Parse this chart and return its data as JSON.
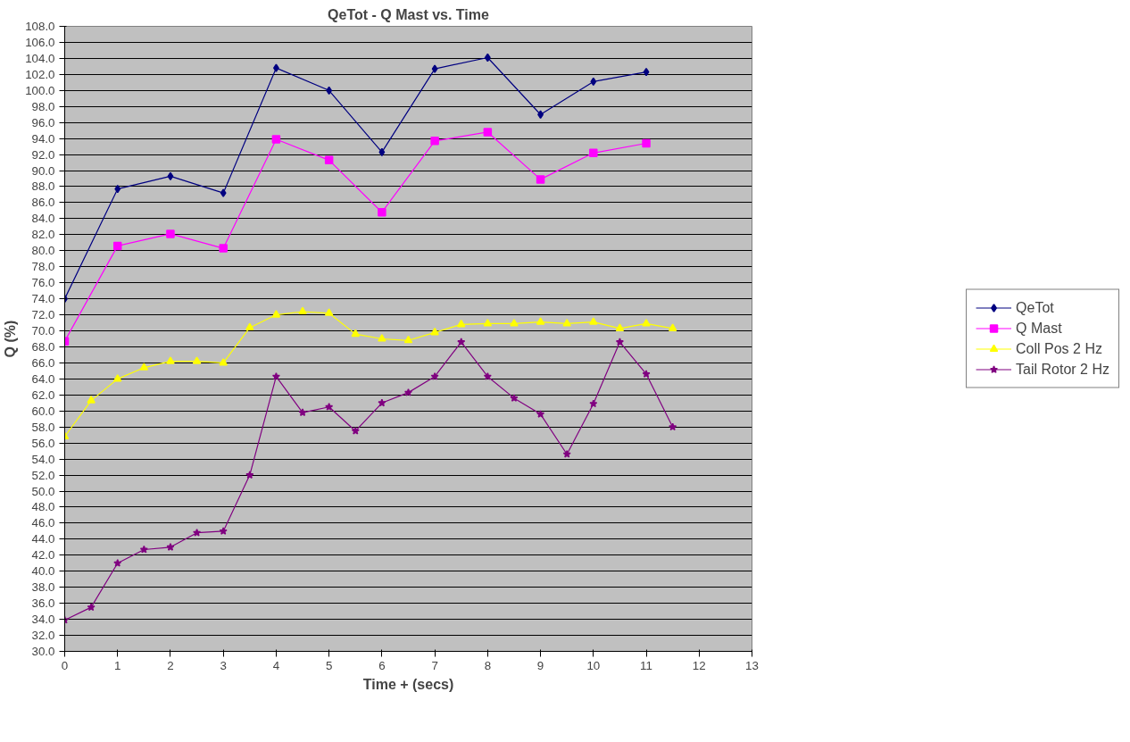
{
  "chart_data": {
    "type": "line",
    "title": "QeTot - Q Mast vs. Time",
    "xlabel": "Time + (secs)",
    "ylabel": "Q (%)",
    "xlim": [
      0,
      13
    ],
    "xticks": [
      0,
      1,
      2,
      3,
      4,
      5,
      6,
      7,
      8,
      9,
      10,
      11,
      12,
      13
    ],
    "ylim": [
      30,
      108
    ],
    "yticks": [
      {
        "value": 30,
        "label": "30.0"
      },
      {
        "value": 32,
        "label": "32.0"
      },
      {
        "value": 34,
        "label": "34.0"
      },
      {
        "value": 36,
        "label": "36.0"
      },
      {
        "value": 38,
        "label": "38.0"
      },
      {
        "value": 40,
        "label": "40.0"
      },
      {
        "value": 42,
        "label": "42.0"
      },
      {
        "value": 44,
        "label": "44.0"
      },
      {
        "value": 46,
        "label": "46.0"
      },
      {
        "value": 48,
        "label": "48.0"
      },
      {
        "value": 50,
        "label": "50.0"
      },
      {
        "value": 52,
        "label": "52.0"
      },
      {
        "value": 54,
        "label": "54.0"
      },
      {
        "value": 56,
        "label": "56.0"
      },
      {
        "value": 58,
        "label": "58.0"
      },
      {
        "value": 60,
        "label": "60.0"
      },
      {
        "value": 62,
        "label": "62.0"
      },
      {
        "value": 64,
        "label": "64.0"
      },
      {
        "value": 66,
        "label": "66.0"
      },
      {
        "value": 68,
        "label": "68.0"
      },
      {
        "value": 70,
        "label": "70.0"
      },
      {
        "value": 72,
        "label": "72.0"
      },
      {
        "value": 74,
        "label": "74.0"
      },
      {
        "value": 76,
        "label": "76.0"
      },
      {
        "value": 78,
        "label": "78.0"
      },
      {
        "value": 80,
        "label": "80.0"
      },
      {
        "value": 82,
        "label": "82.0"
      },
      {
        "value": 84,
        "label": "84.0"
      },
      {
        "value": 86,
        "label": "86.0"
      },
      {
        "value": 88,
        "label": "88.0"
      },
      {
        "value": 90,
        "label": "90.0"
      },
      {
        "value": 92,
        "label": "92.0"
      },
      {
        "value": 94,
        "label": "94.0"
      },
      {
        "value": 96,
        "label": "96.0"
      },
      {
        "value": 98,
        "label": "98.0"
      },
      {
        "value": 100,
        "label": "100.0"
      },
      {
        "value": 102,
        "label": "102.0"
      },
      {
        "value": 104,
        "label": "104.0"
      },
      {
        "value": 106,
        "label": "106.0"
      },
      {
        "value": 108,
        "label": "108.0"
      }
    ],
    "grid": "y",
    "legend": "right",
    "line_style": "solid",
    "series": [
      {
        "name": "QeTot",
        "color": "#000080",
        "marker": "diamond",
        "x": [
          0,
          1,
          2,
          3,
          4,
          5,
          6,
          7,
          8,
          9,
          10,
          11
        ],
        "values": [
          74.0,
          87.7,
          89.3,
          87.2,
          102.8,
          100.0,
          92.3,
          102.7,
          104.1,
          97.0,
          101.1,
          102.3
        ]
      },
      {
        "name": "Q Mast",
        "color": "#ff00ff",
        "marker": "square",
        "x": [
          0,
          1,
          2,
          3,
          4,
          5,
          6,
          7,
          8,
          9,
          10,
          11
        ],
        "values": [
          68.7,
          80.6,
          82.1,
          80.3,
          93.9,
          91.3,
          84.8,
          93.7,
          94.8,
          88.9,
          92.2,
          93.4
        ]
      },
      {
        "name": "Coll Pos 2 Hz",
        "color": "#ffff00",
        "marker": "triangle",
        "x": [
          0,
          0.5,
          1,
          1.5,
          2,
          2.5,
          3,
          3.5,
          4,
          4.5,
          5,
          5.5,
          6,
          6.5,
          7,
          7.5,
          8,
          8.5,
          9,
          9.5,
          10,
          10.5,
          11,
          11.5
        ],
        "values": [
          56.8,
          61.3,
          64.0,
          65.4,
          66.2,
          66.2,
          66.0,
          70.4,
          72.0,
          72.4,
          72.2,
          69.6,
          69.0,
          68.8,
          69.8,
          70.8,
          70.9,
          70.9,
          71.1,
          70.9,
          71.1,
          70.3,
          70.9,
          70.3
        ]
      },
      {
        "name": "Tail Rotor 2 Hz",
        "color": "#800080",
        "marker": "star",
        "x": [
          0,
          0.5,
          1,
          1.5,
          2,
          2.5,
          3,
          3.5,
          4,
          4.5,
          5,
          5.5,
          6,
          6.5,
          7,
          7.5,
          8,
          8.5,
          9,
          9.5,
          10,
          10.5,
          11,
          11.5
        ],
        "values": [
          33.9,
          35.5,
          41.0,
          42.7,
          43.0,
          44.8,
          45.0,
          52.0,
          64.3,
          59.8,
          60.5,
          57.5,
          61.0,
          62.3,
          64.3,
          68.6,
          64.3,
          61.6,
          59.6,
          54.6,
          60.9,
          68.6,
          64.6,
          58.0
        ]
      }
    ]
  }
}
